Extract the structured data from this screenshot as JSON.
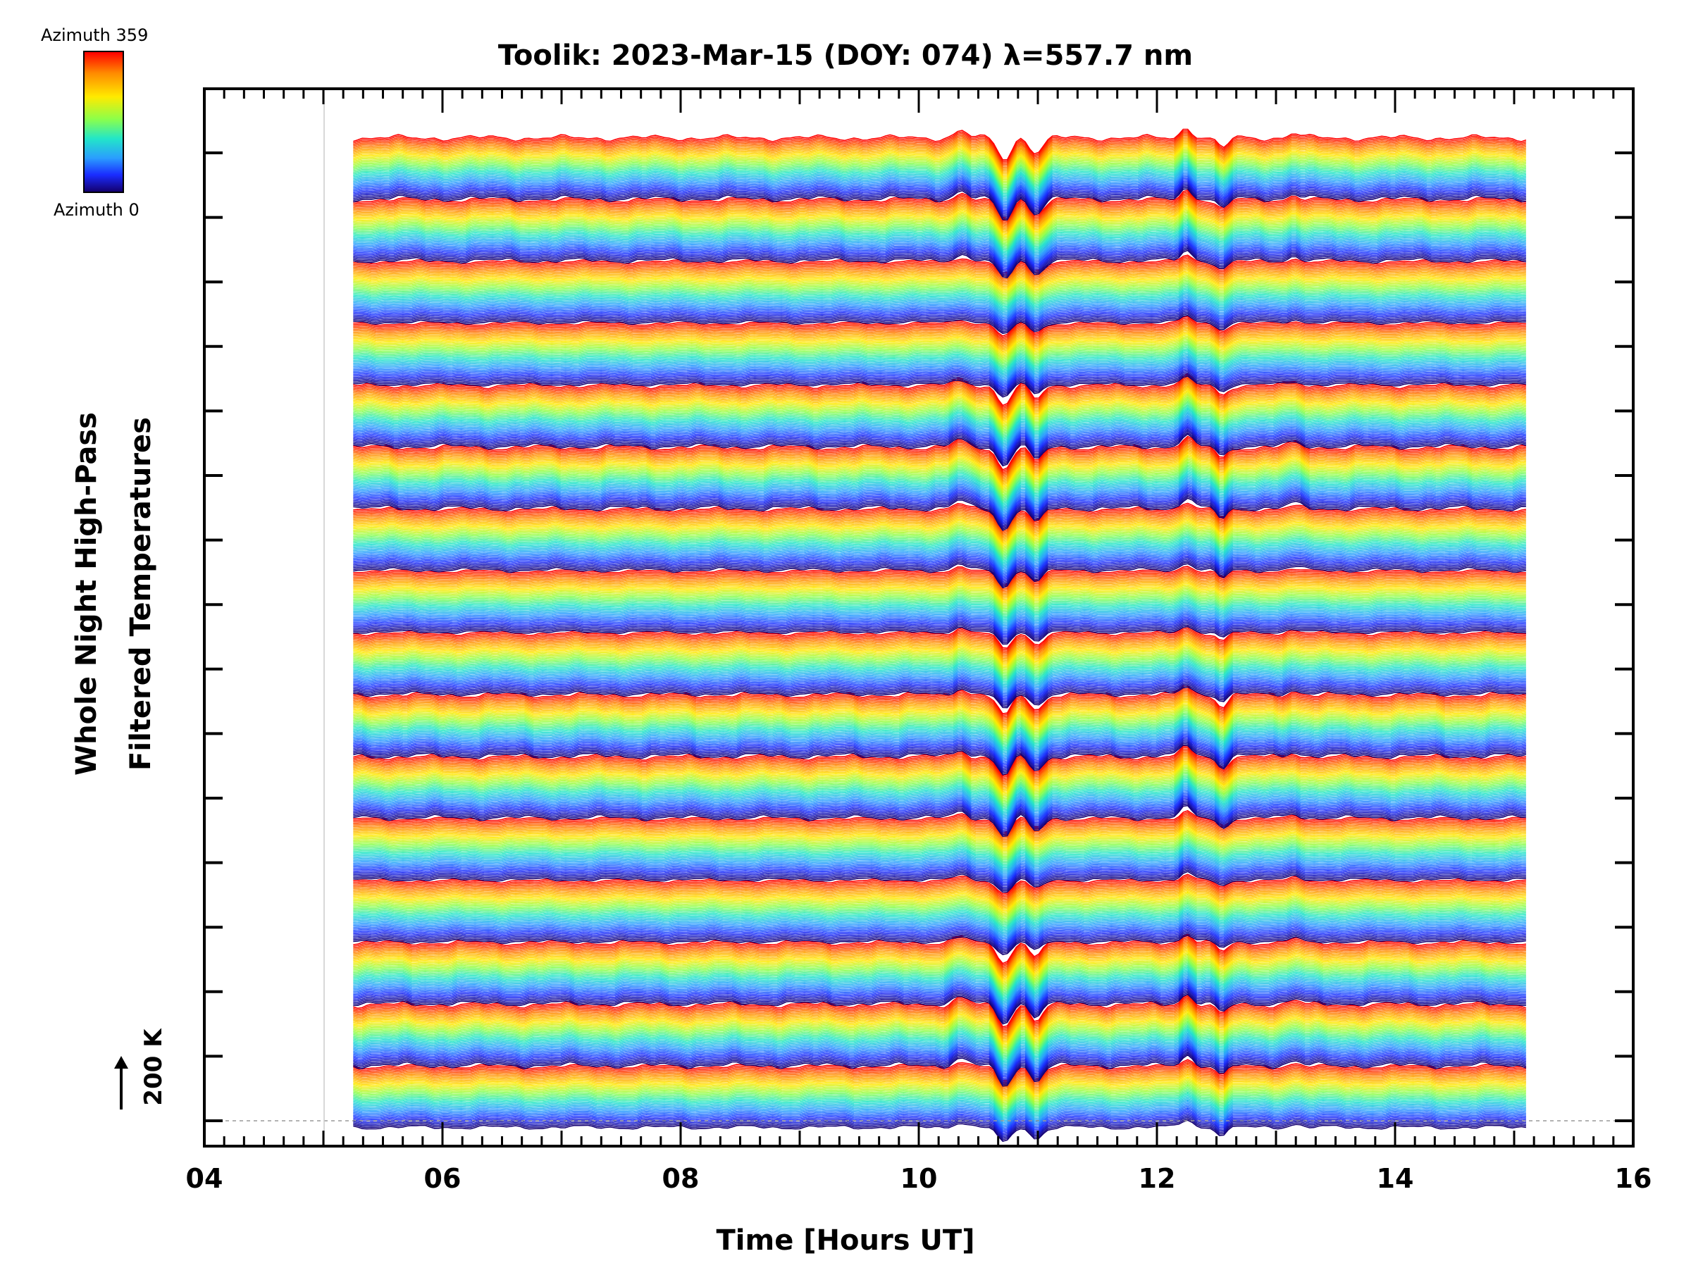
{
  "chart_data": {
    "type": "line",
    "title": "Toolik: 2023-Mar-15 (DOY: 074) λ=557.7 nm",
    "xlabel": "Time [Hours UT]",
    "ylabel_lines": [
      "Whole Night High-Pass",
      "Filtered Temperatures"
    ],
    "xlim": [
      4,
      16
    ],
    "x_ticks": [
      "04",
      "06",
      "08",
      "10",
      "12",
      "14",
      "16"
    ],
    "data_time_range": [
      5.25,
      15.1
    ],
    "scale_bar_label": "200 K",
    "colorbar": {
      "top_label": "Azimuth 359",
      "bottom_label": "Azimuth 0",
      "colors": [
        "#140070",
        "#1a2cff",
        "#2a9dff",
        "#22e6c8",
        "#8cff4a",
        "#ffea00",
        "#ff8a00",
        "#ff0000"
      ]
    },
    "traces_per_group": 40,
    "group_count": 16,
    "grid": false,
    "features": [
      {
        "time": 10.35,
        "value_k": 40
      },
      {
        "time": 10.72,
        "value_k": -120
      },
      {
        "time": 10.9,
        "value_k": 20
      },
      {
        "time": 10.98,
        "value_k": -90
      },
      {
        "time": 12.25,
        "value_k": 60
      },
      {
        "time": 12.55,
        "value_k": -60
      },
      {
        "time": 13.15,
        "value_k": 25
      }
    ]
  }
}
